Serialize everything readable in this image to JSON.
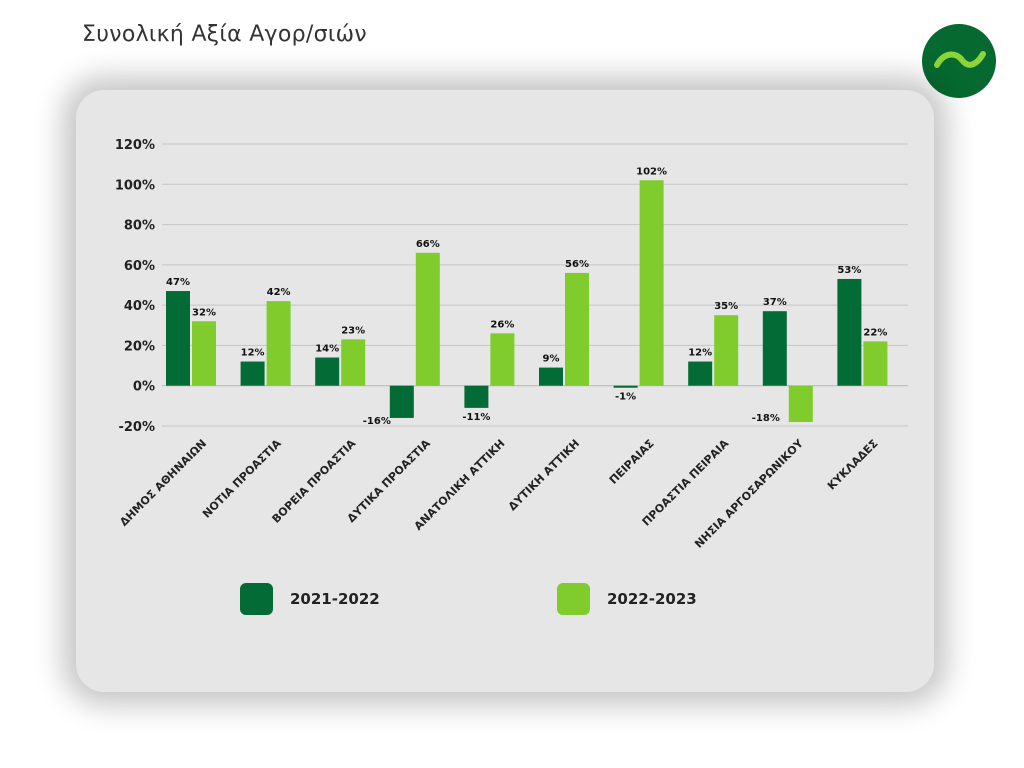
{
  "page": {
    "title": "Συνολική Αξία Αγορ/σιών"
  },
  "colors": {
    "series1": "#036b36",
    "series2": "#7fcc2c",
    "logo_bg": "#066a30",
    "logo_mark": "#8fd33a"
  },
  "logo": {
    "icon": "wave-logo-icon"
  },
  "chart_data": {
    "type": "bar",
    "categories": [
      "ΔΗΜΟΣ ΑΘΗΝΑΙΩΝ",
      "ΝΟΤΙΑ ΠΡΟΑΣΤΙΑ",
      "ΒΟΡΕΙΑ ΠΡΟΑΣΤΙΑ",
      "ΔΥΤΙΚΑ ΠΡΟΑΣΤΙΑ",
      "ΑΝΑΤΟΛΙΚΗ ΑΤΤΙΚΗ",
      "ΔΥΤΙΚΗ ΑΤΤΙΚΗ",
      "ΠΕΙΡΑΙΑΣ",
      "ΠΡΟΑΣΤΙΑ ΠΕΙΡΑΙΑ",
      "ΝΗΣΙΑ ΑΡΓΟΣΑΡΩΝΙΚΟΥ",
      "ΚΥΚΛΑΔΕΣ"
    ],
    "series": [
      {
        "name": "2021-2022",
        "values": [
          47,
          12,
          14,
          -16,
          -11,
          9,
          -1,
          12,
          37,
          53
        ]
      },
      {
        "name": "2022-2023",
        "values": [
          32,
          42,
          23,
          66,
          26,
          56,
          102,
          35,
          -18,
          22
        ]
      }
    ],
    "ylim": [
      -20,
      120
    ],
    "yticks": [
      -20,
      0,
      20,
      40,
      60,
      80,
      100,
      120
    ],
    "value_suffix": "%",
    "grid": true,
    "legend": "bottom"
  }
}
